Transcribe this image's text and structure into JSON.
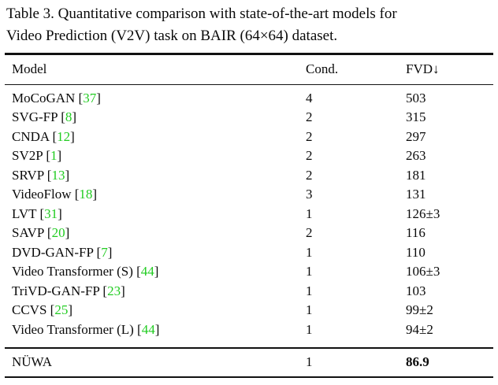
{
  "caption": {
    "line1": "Table 3. Quantitative comparison with state-of-the-art models for",
    "line2": "Video Prediction (V2V) task on BAIR (64×64) dataset."
  },
  "table": {
    "headers": {
      "model": "Model",
      "cond": "Cond.",
      "fvd": "FVD↓"
    },
    "citation_brackets": {
      "open": "[",
      "close": "]"
    },
    "rows": [
      {
        "model": "MoCoGAN",
        "cite": "37",
        "cond": "4",
        "fvd": "503"
      },
      {
        "model": "SVG-FP",
        "cite": "8",
        "cond": "2",
        "fvd": "315"
      },
      {
        "model": "CNDA",
        "cite": "12",
        "cond": "2",
        "fvd": "297"
      },
      {
        "model": "SV2P",
        "cite": "1",
        "cond": "2",
        "fvd": "263"
      },
      {
        "model": "SRVP",
        "cite": "13",
        "cond": "2",
        "fvd": "181"
      },
      {
        "model": "VideoFlow",
        "cite": "18",
        "cond": "3",
        "fvd": "131"
      },
      {
        "model": "LVT",
        "cite": "31",
        "cond": "1",
        "fvd": "126±3"
      },
      {
        "model": "SAVP",
        "cite": "20",
        "cond": "2",
        "fvd": "116"
      },
      {
        "model": "DVD-GAN-FP",
        "cite": "7",
        "cond": "1",
        "fvd": "110"
      },
      {
        "model": "Video Transformer (S)",
        "cite": "44",
        "cond": "1",
        "fvd": "106±3"
      },
      {
        "model": "TriVD-GAN-FP",
        "cite": "23",
        "cond": "1",
        "fvd": "103"
      },
      {
        "model": "CCVS",
        "cite": "25",
        "cond": "1",
        "fvd": "99±2"
      },
      {
        "model": "Video Transformer (L)",
        "cite": "44",
        "cond": "1",
        "fvd": "94±2"
      }
    ],
    "final_row": {
      "model": "NÜWA",
      "cond": "1",
      "fvd": "86.9"
    }
  },
  "colors": {
    "citation_green": "#22cc22",
    "text": "#0a0a0a",
    "background": "#ffffff"
  }
}
